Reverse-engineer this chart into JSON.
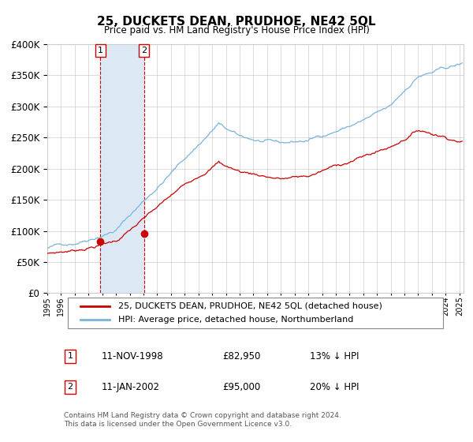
{
  "title": "25, DUCKETS DEAN, PRUDHOE, NE42 5QL",
  "subtitle": "Price paid vs. HM Land Registry's House Price Index (HPI)",
  "footer": "Contains HM Land Registry data © Crown copyright and database right 2024.\nThis data is licensed under the Open Government Licence v3.0.",
  "legend_line1": "25, DUCKETS DEAN, PRUDHOE, NE42 5QL (detached house)",
  "legend_line2": "HPI: Average price, detached house, Northumberland",
  "transaction1_date": "11-NOV-1998",
  "transaction1_price": "£82,950",
  "transaction1_hpi": "13% ↓ HPI",
  "transaction2_date": "11-JAN-2002",
  "transaction2_price": "£95,000",
  "transaction2_hpi": "20% ↓ HPI",
  "hpi_color": "#7ab4d8",
  "price_color": "#cc0000",
  "marker_color": "#cc0000",
  "vline_color": "#cc0000",
  "shade_color": "#dce9f5",
  "grid_color": "#cccccc",
  "ylim": [
    0,
    400000
  ],
  "yticks": [
    0,
    50000,
    100000,
    150000,
    200000,
    250000,
    300000,
    350000,
    400000
  ],
  "start_year": 1995,
  "end_year": 2025,
  "transaction1_year": 1998.86,
  "transaction2_year": 2002.04,
  "transaction1_price_val": 82950,
  "transaction2_price_val": 95000,
  "background_color": "#ffffff"
}
